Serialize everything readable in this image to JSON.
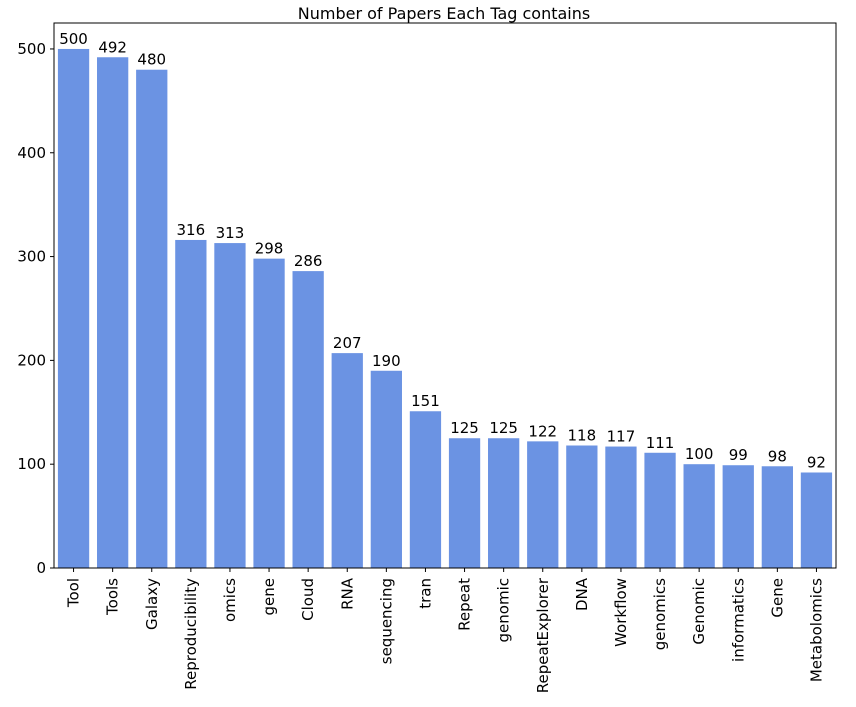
{
  "chart_data": {
    "type": "bar",
    "title": "Number of Papers Each Tag contains",
    "xlabel": "",
    "ylabel": "",
    "categories": [
      "Tool",
      "Tools",
      "Galaxy",
      "Reproducibility",
      "omics",
      "gene",
      "Cloud",
      "RNA",
      "sequencing",
      "tran",
      "Repeat",
      "genomic",
      "RepeatExplorer",
      "DNA",
      "Workflow",
      "genomics",
      "Genomic",
      "informatics",
      "Gene",
      "Metabolomics"
    ],
    "values": [
      500,
      492,
      480,
      316,
      313,
      298,
      286,
      207,
      190,
      151,
      125,
      125,
      122,
      118,
      117,
      111,
      100,
      99,
      98,
      92
    ],
    "ylim": [
      0,
      525
    ],
    "yticks": [
      0,
      100,
      200,
      300,
      400,
      500
    ],
    "bar_color": "#6b93e3",
    "grid": false,
    "legend": false,
    "data_labels": true
  }
}
